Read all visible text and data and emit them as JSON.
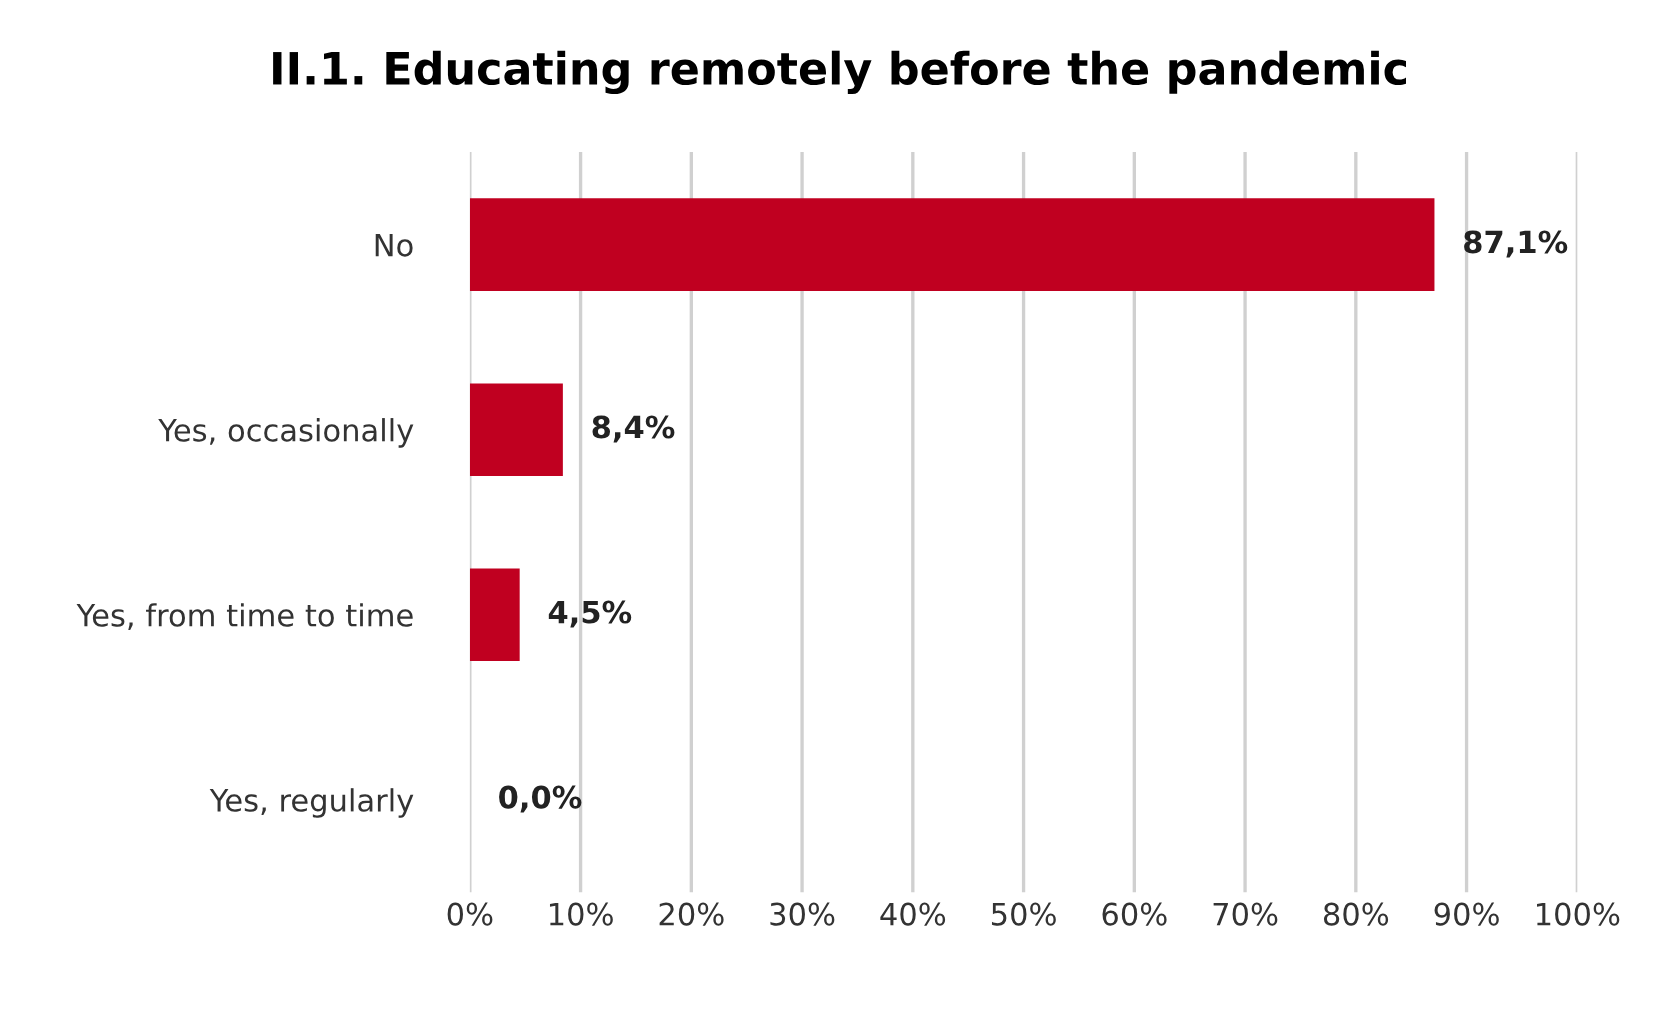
{
  "chart_data": {
    "type": "bar",
    "orientation": "horizontal",
    "title": "II.1. Educating remotely before the pandemic",
    "categories": [
      "No",
      "Yes, occasionally",
      "Yes, from time to time",
      "Yes, regularly"
    ],
    "values": [
      87.1,
      8.4,
      4.5,
      0.0
    ],
    "value_labels": [
      "87,1%",
      "8,4%",
      "4,5%",
      "0,0%"
    ],
    "color": "#c00020",
    "xlim": [
      0,
      100
    ],
    "xticks": [
      {
        "value": 0,
        "label": "0%"
      },
      {
        "value": 10,
        "label": "10%"
      },
      {
        "value": 20,
        "label": "20%"
      },
      {
        "value": 30,
        "label": "30%"
      },
      {
        "value": 40,
        "label": "40%"
      },
      {
        "value": 50,
        "label": "50%"
      },
      {
        "value": 60,
        "label": "60%"
      },
      {
        "value": 70,
        "label": "70%"
      },
      {
        "value": 80,
        "label": "80%"
      },
      {
        "value": 90,
        "label": "90%"
      },
      {
        "value": 100,
        "label": "100%"
      }
    ],
    "grid": "x"
  }
}
